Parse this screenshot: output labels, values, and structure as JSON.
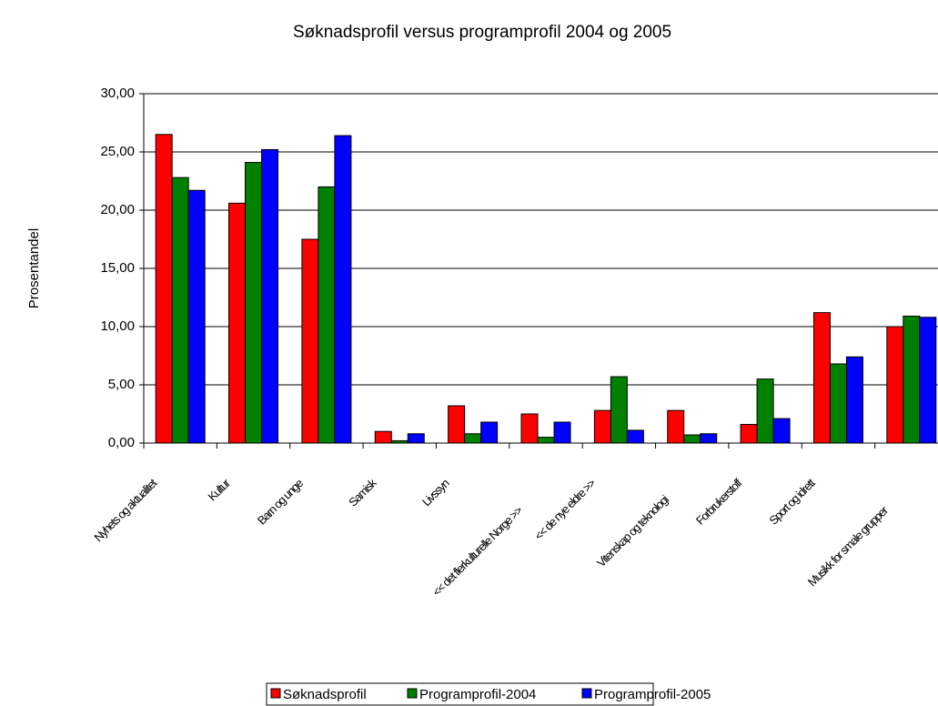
{
  "chart_data": {
    "type": "bar",
    "title": "Søknadsprofil versus programprofil 2004 og 2005",
    "y_label": "Prosentandel",
    "categories": [
      "Nyhets og aktualitet",
      "Kultur",
      "Barn og unge",
      "Samisk",
      "Livssyn",
      "<< det flerkulturelle Norge >>",
      "<< de nye eldre >>",
      "Vitenskap og teknologi",
      "Forbrukerstoff",
      "Sport og idrett",
      "Musikk for smale grupper"
    ],
    "series": [
      {
        "name": "Søknadsprofil",
        "color": "#ff0000",
        "values": [
          26.5,
          20.6,
          17.5,
          1.0,
          3.2,
          2.5,
          2.8,
          2.8,
          1.6,
          11.2,
          10.0
        ]
      },
      {
        "name": "Programprofil-2004",
        "color": "#008000",
        "values": [
          22.8,
          24.1,
          22.0,
          0.2,
          0.8,
          0.5,
          5.7,
          0.7,
          5.5,
          6.8,
          10.9
        ]
      },
      {
        "name": "Programprofil-2005",
        "color": "#0000ff",
        "values": [
          21.7,
          25.2,
          26.4,
          0.8,
          1.8,
          1.8,
          1.1,
          0.8,
          2.1,
          7.4,
          10.8
        ]
      }
    ],
    "ylim": [
      0,
      30
    ],
    "yticks": [
      {
        "value": 0,
        "label": "0,00"
      },
      {
        "value": 5,
        "label": "5,00"
      },
      {
        "value": 10,
        "label": "10,00"
      },
      {
        "value": 15,
        "label": "15,00"
      },
      {
        "value": 20,
        "label": "20,00"
      },
      {
        "value": 25,
        "label": "25,00"
      },
      {
        "value": 30,
        "label": "30,00"
      }
    ],
    "grid": true,
    "legend": "bottom"
  }
}
